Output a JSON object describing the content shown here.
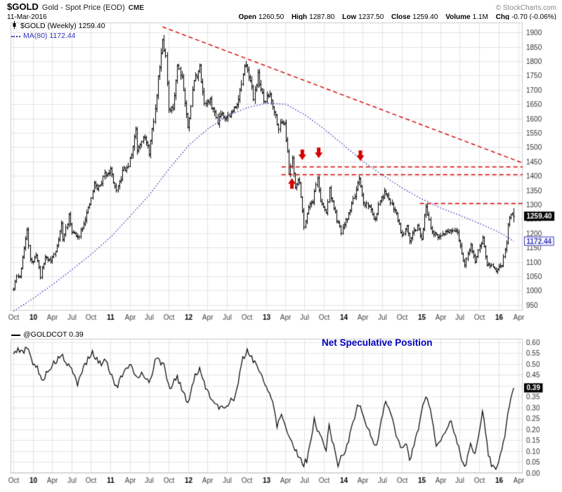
{
  "header": {
    "symbol": "$GOLD",
    "title": "Gold - Spot Price (EOD)",
    "exchange": "CME",
    "copyright": "© StockCharts.com",
    "date": "11-Mar-2016",
    "quote": [
      {
        "label": "Open",
        "value": "1260.50"
      },
      {
        "label": "High",
        "value": "1287.80"
      },
      {
        "label": "Low",
        "value": "1237.50"
      },
      {
        "label": "Close",
        "value": "1259.40"
      },
      {
        "label": "Volume",
        "value": "1.1M"
      },
      {
        "label": "Chg",
        "value": "-0.70 (-0.06%)"
      }
    ]
  },
  "colors": {
    "candle": "#000000",
    "ma_line": "#3333bb",
    "annotation_red": "#d40000",
    "grid": "#e3e3e3",
    "axis_text": "#333333",
    "year_text": "#000000",
    "cot_line": "#000000",
    "cot_annotation_blue": "#0000bb",
    "last_price_bg": "#000000",
    "last_price_fg": "#ffffff",
    "plot_border": "#cccccc"
  },
  "chart_data": [
    {
      "type": "candlestick",
      "title": "$GOLD Gold - Spot Price (EOD) Weekly",
      "legend": [
        "$GOLD (Weekly) 1259.40",
        "MA(80) 1172.44"
      ],
      "yaxis_side": "right",
      "x_range": [
        "2009-09-18",
        "2016-04-22"
      ],
      "weekly_start": "2009-10-02",
      "weekly_end": "2016-03-11",
      "ylim": [
        930,
        1935
      ],
      "y_ticks": {
        "min": 950,
        "max": 1900,
        "step": 50
      },
      "x_ticks": [
        {
          "date": "2009-10-01",
          "label": "Oct",
          "year": false
        },
        {
          "date": "2010-01-01",
          "label": "10",
          "year": true
        },
        {
          "date": "2010-04-01",
          "label": "Apr",
          "year": false
        },
        {
          "date": "2010-07-01",
          "label": "Jul",
          "year": false
        },
        {
          "date": "2010-10-01",
          "label": "Oct",
          "year": false
        },
        {
          "date": "2011-01-01",
          "label": "11",
          "year": true
        },
        {
          "date": "2011-04-01",
          "label": "Apr",
          "year": false
        },
        {
          "date": "2011-07-01",
          "label": "Jul",
          "year": false
        },
        {
          "date": "2011-10-01",
          "label": "Oct",
          "year": false
        },
        {
          "date": "2012-01-01",
          "label": "12",
          "year": true
        },
        {
          "date": "2012-04-01",
          "label": "Apr",
          "year": false
        },
        {
          "date": "2012-07-01",
          "label": "Jul",
          "year": false
        },
        {
          "date": "2012-10-01",
          "label": "Oct",
          "year": false
        },
        {
          "date": "2013-01-01",
          "label": "13",
          "year": true
        },
        {
          "date": "2013-04-01",
          "label": "Apr",
          "year": false
        },
        {
          "date": "2013-07-01",
          "label": "Jul",
          "year": false
        },
        {
          "date": "2013-10-01",
          "label": "Oct",
          "year": false
        },
        {
          "date": "2014-01-01",
          "label": "14",
          "year": true
        },
        {
          "date": "2014-04-01",
          "label": "Apr",
          "year": false
        },
        {
          "date": "2014-07-01",
          "label": "Jul",
          "year": false
        },
        {
          "date": "2014-10-01",
          "label": "Oct",
          "year": false
        },
        {
          "date": "2015-01-01",
          "label": "15",
          "year": true
        },
        {
          "date": "2015-04-01",
          "label": "Apr",
          "year": false
        },
        {
          "date": "2015-07-01",
          "label": "Jul",
          "year": false
        },
        {
          "date": "2015-10-01",
          "label": "Oct",
          "year": false
        },
        {
          "date": "2016-01-01",
          "label": "16",
          "year": true
        },
        {
          "date": "2016-04-01",
          "label": "Apr",
          "year": false
        }
      ],
      "last_bar": {
        "open": 1260.5,
        "high": 1287.8,
        "low": 1237.5,
        "close": 1259.4
      },
      "last_label": "1259.40",
      "price_keypoints": [
        [
          "2009-10-02",
          1004
        ],
        [
          "2009-10-16",
          1050
        ],
        [
          "2009-10-30",
          1045
        ],
        [
          "2009-11-13",
          1118
        ],
        [
          "2009-11-27",
          1175
        ],
        [
          "2009-12-04",
          1215
        ],
        [
          "2009-12-18",
          1112
        ],
        [
          "2010-01-01",
          1095
        ],
        [
          "2010-01-15",
          1130
        ],
        [
          "2010-02-05",
          1052
        ],
        [
          "2010-02-26",
          1118
        ],
        [
          "2010-03-26",
          1105
        ],
        [
          "2010-04-16",
          1136
        ],
        [
          "2010-05-14",
          1232
        ],
        [
          "2010-05-21",
          1176
        ],
        [
          "2010-06-18",
          1258
        ],
        [
          "2010-07-02",
          1210
        ],
        [
          "2010-07-30",
          1182
        ],
        [
          "2010-08-27",
          1238
        ],
        [
          "2010-09-24",
          1298
        ],
        [
          "2010-10-15",
          1372
        ],
        [
          "2010-10-29",
          1358
        ],
        [
          "2010-11-12",
          1365
        ],
        [
          "2010-12-03",
          1406
        ],
        [
          "2010-12-31",
          1421
        ],
        [
          "2011-01-28",
          1341
        ],
        [
          "2011-03-04",
          1429
        ],
        [
          "2011-03-18",
          1420
        ],
        [
          "2011-04-08",
          1474
        ],
        [
          "2011-04-29",
          1566
        ],
        [
          "2011-05-06",
          1492
        ],
        [
          "2011-06-03",
          1542
        ],
        [
          "2011-07-01",
          1483
        ],
        [
          "2011-07-29",
          1628
        ],
        [
          "2011-08-12",
          1743
        ],
        [
          "2011-08-26",
          1830
        ],
        [
          "2011-09-02",
          1884
        ],
        [
          "2011-09-16",
          1815
        ],
        [
          "2011-09-30",
          1622
        ],
        [
          "2011-10-21",
          1636
        ],
        [
          "2011-11-11",
          1788
        ],
        [
          "2011-12-02",
          1747
        ],
        [
          "2011-12-30",
          1566
        ],
        [
          "2012-01-27",
          1735
        ],
        [
          "2012-02-24",
          1776
        ],
        [
          "2012-03-16",
          1655
        ],
        [
          "2012-04-13",
          1658
        ],
        [
          "2012-05-18",
          1592
        ],
        [
          "2012-06-01",
          1622
        ],
        [
          "2012-06-29",
          1604
        ],
        [
          "2012-07-27",
          1623
        ],
        [
          "2012-08-24",
          1670
        ],
        [
          "2012-09-21",
          1773
        ],
        [
          "2012-10-05",
          1781
        ],
        [
          "2012-11-02",
          1675
        ],
        [
          "2012-11-23",
          1751
        ],
        [
          "2012-12-21",
          1657
        ],
        [
          "2013-01-18",
          1687
        ],
        [
          "2013-02-15",
          1609
        ],
        [
          "2013-03-01",
          1572
        ],
        [
          "2013-03-28",
          1596
        ],
        [
          "2013-04-12",
          1477
        ],
        [
          "2013-04-19",
          1406
        ],
        [
          "2013-05-03",
          1464
        ],
        [
          "2013-05-17",
          1365
        ],
        [
          "2013-06-07",
          1383
        ],
        [
          "2013-06-28",
          1224
        ],
        [
          "2013-07-19",
          1296
        ],
        [
          "2013-08-09",
          1314
        ],
        [
          "2013-08-30",
          1396
        ],
        [
          "2013-09-13",
          1308
        ],
        [
          "2013-10-11",
          1272
        ],
        [
          "2013-10-25",
          1352
        ],
        [
          "2013-11-15",
          1287
        ],
        [
          "2013-12-06",
          1229
        ],
        [
          "2013-12-20",
          1204
        ],
        [
          "2014-01-17",
          1252
        ],
        [
          "2014-02-14",
          1319
        ],
        [
          "2014-03-14",
          1383
        ],
        [
          "2014-04-04",
          1304
        ],
        [
          "2014-04-25",
          1301
        ],
        [
          "2014-05-30",
          1246
        ],
        [
          "2014-06-20",
          1316
        ],
        [
          "2014-07-11",
          1338
        ],
        [
          "2014-08-08",
          1311
        ],
        [
          "2014-09-05",
          1269
        ],
        [
          "2014-10-03",
          1191
        ],
        [
          "2014-10-24",
          1232
        ],
        [
          "2014-11-07",
          1178
        ],
        [
          "2014-11-21",
          1198
        ],
        [
          "2014-12-12",
          1222
        ],
        [
          "2015-01-02",
          1186
        ],
        [
          "2015-01-23",
          1293
        ],
        [
          "2015-02-20",
          1204
        ],
        [
          "2015-03-20",
          1182
        ],
        [
          "2015-04-17",
          1203
        ],
        [
          "2015-05-22",
          1204
        ],
        [
          "2015-06-19",
          1200
        ],
        [
          "2015-07-24",
          1086
        ],
        [
          "2015-08-21",
          1160
        ],
        [
          "2015-09-11",
          1103
        ],
        [
          "2015-10-16",
          1183
        ],
        [
          "2015-11-06",
          1088
        ],
        [
          "2015-12-04",
          1084
        ],
        [
          "2015-12-18",
          1066
        ],
        [
          "2016-01-15",
          1089
        ],
        [
          "2016-02-05",
          1174
        ],
        [
          "2016-02-12",
          1239
        ],
        [
          "2016-03-04",
          1270
        ],
        [
          "2016-03-11",
          1259.4
        ]
      ],
      "ma": {
        "period": 80,
        "last": 1172.44,
        "last_label": "1172.44",
        "keypoints": [
          [
            "2009-10-02",
            928
          ],
          [
            "2010-01-01",
            972
          ],
          [
            "2010-04-02",
            1020
          ],
          [
            "2010-07-02",
            1072
          ],
          [
            "2010-10-01",
            1126
          ],
          [
            "2011-01-07",
            1190
          ],
          [
            "2011-04-01",
            1258
          ],
          [
            "2011-07-01",
            1332
          ],
          [
            "2011-10-07",
            1428
          ],
          [
            "2012-01-06",
            1508
          ],
          [
            "2012-04-06",
            1566
          ],
          [
            "2012-07-06",
            1610
          ],
          [
            "2012-10-05",
            1638
          ],
          [
            "2013-01-04",
            1654
          ],
          [
            "2013-04-05",
            1650
          ],
          [
            "2013-07-05",
            1612
          ],
          [
            "2013-10-04",
            1562
          ],
          [
            "2014-01-03",
            1506
          ],
          [
            "2014-04-04",
            1450
          ],
          [
            "2014-07-04",
            1402
          ],
          [
            "2014-10-03",
            1358
          ],
          [
            "2015-01-02",
            1320
          ],
          [
            "2015-04-03",
            1288
          ],
          [
            "2015-07-03",
            1262
          ],
          [
            "2015-10-02",
            1234
          ],
          [
            "2016-01-01",
            1204
          ],
          [
            "2016-03-11",
            1172.44
          ]
        ]
      },
      "annotations": {
        "trendline": {
          "from": [
            "2011-09-02",
            1920
          ],
          "to": [
            "2016-04-22",
            1445
          ]
        },
        "hlines": [
          {
            "y": 1433,
            "from": "2013-03-15",
            "to": "2016-04-22"
          },
          {
            "y": 1406,
            "from": "2013-03-15",
            "to": "2016-04-22"
          },
          {
            "y": 1305,
            "from": "2014-12-26",
            "to": "2016-04-22"
          }
        ],
        "arrows": [
          {
            "date": "2013-05-03",
            "price": 1392,
            "dir": "up"
          },
          {
            "date": "2013-06-21",
            "price": 1455,
            "dir": "down"
          },
          {
            "date": "2013-09-06",
            "price": 1462,
            "dir": "down"
          },
          {
            "date": "2014-03-21",
            "price": 1452,
            "dir": "down"
          }
        ]
      }
    },
    {
      "type": "line",
      "title": "@GOLDCOT Net Speculative Position",
      "legend": "@GOLDCOT 0.39",
      "annotation": "Net Speculative Position",
      "yaxis_side": "right",
      "weekly_start": "2009-10-02",
      "weekly_end": "2016-03-11",
      "ylim": [
        0,
        0.615
      ],
      "y_ticks": {
        "min": 0,
        "max": 0.6,
        "step": 0.05
      },
      "last_value": 0.39,
      "last_label": "0.39",
      "keypoints": [
        [
          "2009-10-02",
          0.54
        ],
        [
          "2009-10-23",
          0.57
        ],
        [
          "2009-11-20",
          0.55
        ],
        [
          "2009-12-04",
          0.58
        ],
        [
          "2009-12-25",
          0.52
        ],
        [
          "2010-01-22",
          0.48
        ],
        [
          "2010-02-12",
          0.42
        ],
        [
          "2010-03-12",
          0.47
        ],
        [
          "2010-04-09",
          0.5
        ],
        [
          "2010-05-14",
          0.54
        ],
        [
          "2010-06-11",
          0.5
        ],
        [
          "2010-07-02",
          0.47
        ],
        [
          "2010-07-30",
          0.41
        ],
        [
          "2010-09-03",
          0.5
        ],
        [
          "2010-10-08",
          0.55
        ],
        [
          "2010-11-12",
          0.5
        ],
        [
          "2010-12-10",
          0.52
        ],
        [
          "2011-01-28",
          0.39
        ],
        [
          "2011-03-04",
          0.46
        ],
        [
          "2011-04-08",
          0.49
        ],
        [
          "2011-05-06",
          0.44
        ],
        [
          "2011-06-03",
          0.46
        ],
        [
          "2011-07-01",
          0.41
        ],
        [
          "2011-08-05",
          0.53
        ],
        [
          "2011-09-09",
          0.49
        ],
        [
          "2011-10-07",
          0.39
        ],
        [
          "2011-11-11",
          0.44
        ],
        [
          "2011-12-30",
          0.32
        ],
        [
          "2012-02-03",
          0.45
        ],
        [
          "2012-02-24",
          0.47
        ],
        [
          "2012-03-30",
          0.38
        ],
        [
          "2012-05-25",
          0.29
        ],
        [
          "2012-07-06",
          0.32
        ],
        [
          "2012-08-10",
          0.35
        ],
        [
          "2012-09-14",
          0.52
        ],
        [
          "2012-10-05",
          0.56
        ],
        [
          "2012-11-23",
          0.49
        ],
        [
          "2012-12-28",
          0.4
        ],
        [
          "2013-02-01",
          0.34
        ],
        [
          "2013-02-22",
          0.22
        ],
        [
          "2013-03-15",
          0.27
        ],
        [
          "2013-04-19",
          0.17
        ],
        [
          "2013-05-17",
          0.11
        ],
        [
          "2013-06-28",
          0.04
        ],
        [
          "2013-07-12",
          0.06
        ],
        [
          "2013-08-16",
          0.24
        ],
        [
          "2013-09-13",
          0.17
        ],
        [
          "2013-10-11",
          0.11
        ],
        [
          "2013-10-25",
          0.21
        ],
        [
          "2013-11-22",
          0.1
        ],
        [
          "2013-12-06",
          0.04
        ],
        [
          "2014-01-17",
          0.12
        ],
        [
          "2014-02-21",
          0.26
        ],
        [
          "2014-03-14",
          0.32
        ],
        [
          "2014-04-25",
          0.2
        ],
        [
          "2014-06-06",
          0.12
        ],
        [
          "2014-07-18",
          0.34
        ],
        [
          "2014-08-15",
          0.26
        ],
        [
          "2014-09-19",
          0.13
        ],
        [
          "2014-10-24",
          0.12
        ],
        [
          "2014-11-07",
          0.06
        ],
        [
          "2014-12-05",
          0.15
        ],
        [
          "2015-01-23",
          0.36
        ],
        [
          "2015-02-20",
          0.26
        ],
        [
          "2015-03-13",
          0.12
        ],
        [
          "2015-04-10",
          0.17
        ],
        [
          "2015-05-22",
          0.24
        ],
        [
          "2015-06-19",
          0.14
        ],
        [
          "2015-07-24",
          0.02
        ],
        [
          "2015-08-21",
          0.13
        ],
        [
          "2015-09-11",
          0.08
        ],
        [
          "2015-10-16",
          0.29
        ],
        [
          "2015-11-13",
          0.09
        ],
        [
          "2015-11-27",
          0.04
        ],
        [
          "2015-12-18",
          0.02
        ],
        [
          "2016-01-08",
          0.08
        ],
        [
          "2016-01-29",
          0.17
        ],
        [
          "2016-02-12",
          0.28
        ],
        [
          "2016-02-26",
          0.33
        ],
        [
          "2016-03-11",
          0.39
        ]
      ]
    }
  ]
}
